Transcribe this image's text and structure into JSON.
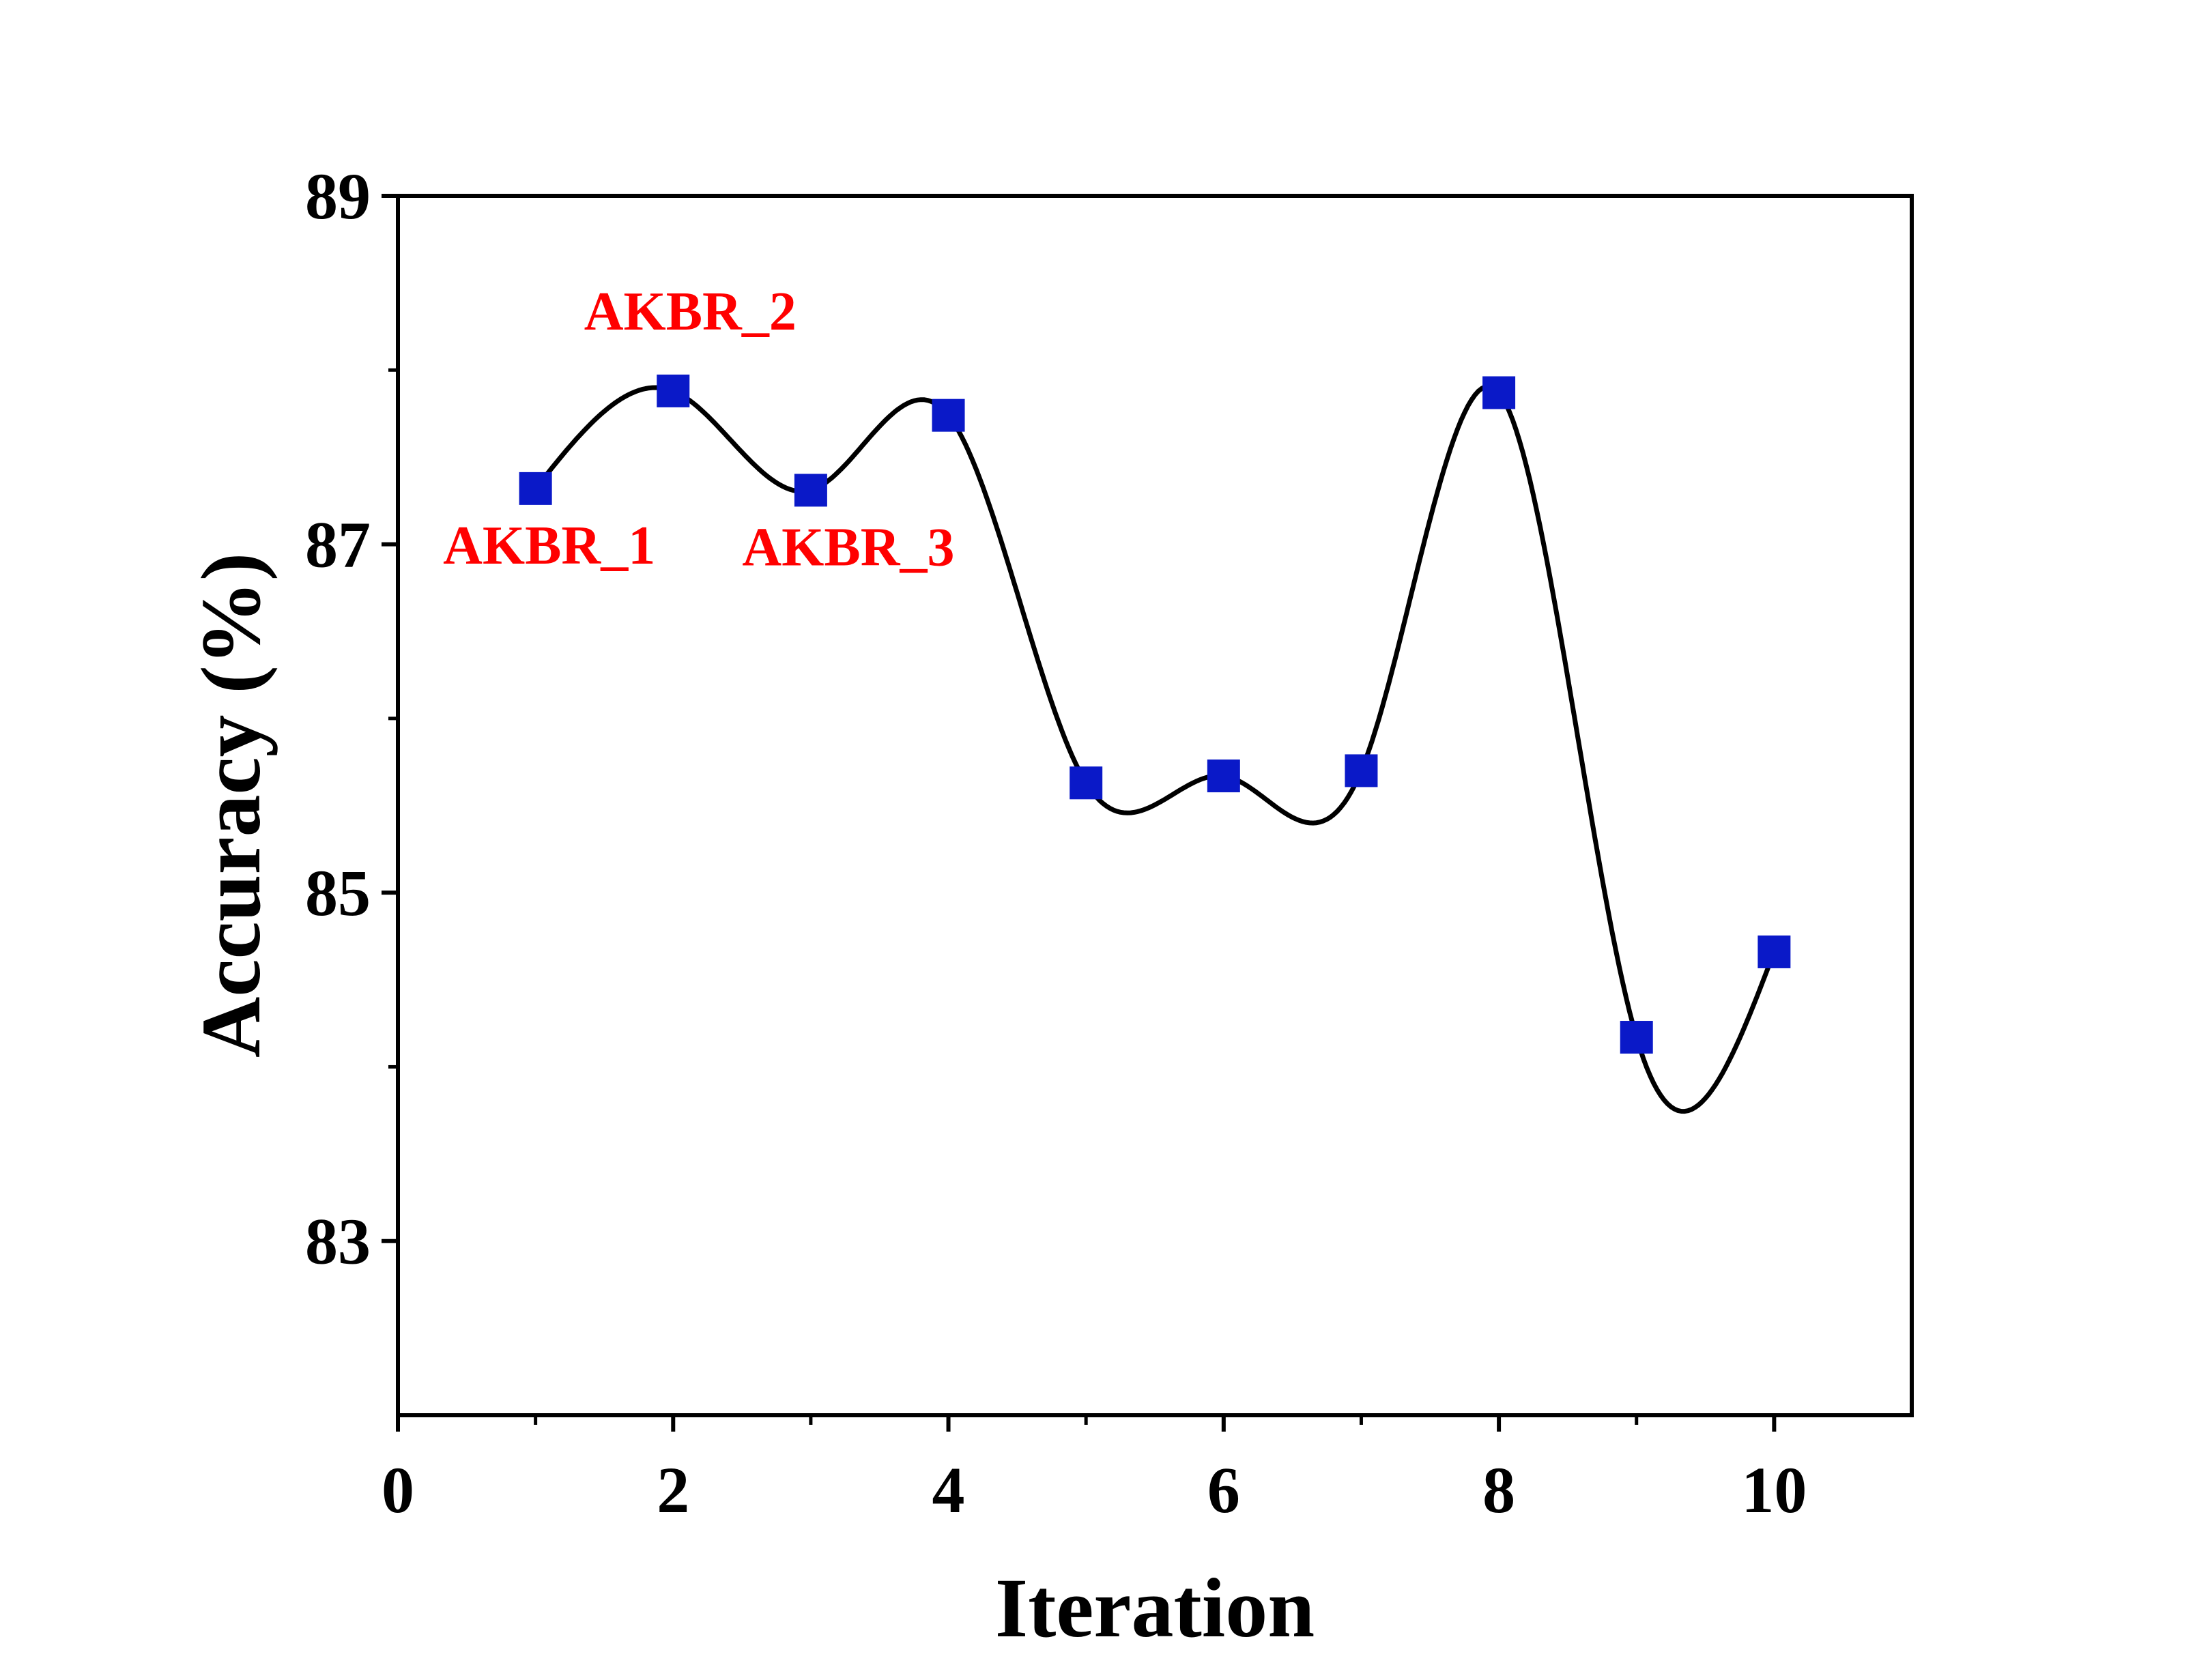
{
  "chart_data": {
    "type": "line",
    "xlabel": "Iteration",
    "ylabel": "Accuracy (%)",
    "xlim": [
      0,
      11
    ],
    "ylim": [
      82,
      89
    ],
    "x_ticks": [
      "0",
      "2",
      "4",
      "6",
      "8",
      "10"
    ],
    "y_ticks": [
      "83",
      "85",
      "87",
      "89"
    ],
    "grid": false,
    "legend": "none",
    "smoothed": true,
    "marker": "square",
    "colors": {
      "marker": "#0A19C8",
      "line": "#000000",
      "annotation": "#FF0000",
      "axis": "#000000"
    },
    "series": [
      {
        "x": [
          1,
          2,
          3,
          4,
          5,
          6,
          7,
          8,
          9,
          10
        ],
        "values": [
          87.32,
          87.88,
          87.31,
          87.74,
          85.63,
          85.67,
          85.7,
          87.87,
          84.17,
          84.66
        ]
      }
    ],
    "annotations": [
      {
        "text": "AKBR_1",
        "x": 1,
        "y": 87.32
      },
      {
        "text": "AKBR_2",
        "x": 2,
        "y": 87.88
      },
      {
        "text": "AKBR_3",
        "x": 3,
        "y": 87.31
      }
    ]
  }
}
